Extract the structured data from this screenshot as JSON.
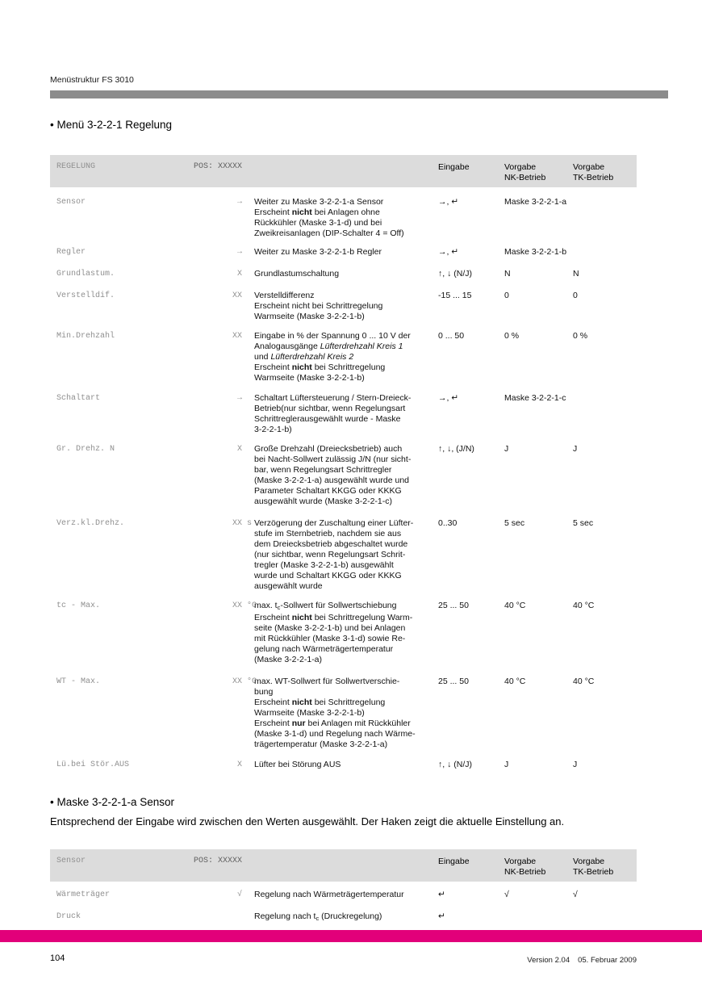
{
  "colors": {
    "accent": "#e2007a",
    "rule_gray": "#8c8c8c",
    "table_header_bg": "#dcdcdc"
  },
  "page": {
    "header_label": "Menüstruktur FS 3010",
    "footer": {
      "page_number": "104",
      "version": "Version 2.04",
      "date": "05. Februar 2009"
    }
  },
  "section1": {
    "heading": "• Menü 3-2-2-1 Regelung"
  },
  "section2": {
    "heading": "• Maske 3-2-2-1-a Sensor",
    "paragraph": "Entsprechend der Eingabe wird zwischen den Werten ausgewählt. Der Haken zeigt die aktuelle Einstellung an."
  },
  "table1": {
    "header": {
      "title": "REGELUNG",
      "pos": "POS: XXXXX",
      "eingabe": "Eingabe",
      "vorgabe": "Vorgabe",
      "nk": "NK-Betrieb",
      "tk": "TK-Betrieb"
    },
    "rows": [
      {
        "label": "Sensor",
        "code": "→",
        "code_suffix": "",
        "eingabe": "→, ↵",
        "nk": "Maske 3-2-2-1-a",
        "tk": "",
        "desc": [
          [
            [
              "",
              "Weiter zu Maske 3-2-2-1-a Sensor"
            ]
          ],
          [
            [
              "",
              "Erscheint "
            ],
            [
              "b",
              "nicht"
            ],
            [
              "",
              " bei Anlagen ohne"
            ]
          ],
          [
            [
              "",
              "Rückkühler (Maske 3-1-d) und bei"
            ]
          ],
          [
            [
              "",
              "Zweikreisanlagen (DIP-Schalter 4 = Off)"
            ]
          ]
        ]
      },
      {
        "label": "Regler",
        "code": "→",
        "code_suffix": "",
        "eingabe": "→, ↵",
        "nk": "Maske 3-2-2-1-b",
        "tk": "",
        "desc": [
          [
            [
              "",
              "Weiter zu Maske 3-2-2-1-b Regler"
            ]
          ]
        ]
      },
      {
        "label": "Grundlastum.",
        "code": "X",
        "code_suffix": "",
        "eingabe": "↑, ↓ (N/J)",
        "nk": "N",
        "tk": "N",
        "desc": [
          [
            [
              "",
              "Grundlastumschaltung"
            ]
          ]
        ]
      },
      {
        "label": "Verstelldif.",
        "code": "XX",
        "code_suffix": "",
        "eingabe": "-15 ... 15",
        "nk": "0",
        "tk": "0",
        "desc": [
          [
            [
              "",
              "Verstelldifferenz"
            ]
          ],
          [
            [
              "",
              "Erscheint nicht bei Schrittregelung"
            ]
          ],
          [
            [
              "",
              "Warmseite (Maske 3-2-2-1-b)"
            ]
          ]
        ]
      },
      {
        "label": "Min.Drehzahl",
        "code": "XX",
        "code_suffix": "",
        "eingabe": "0 ... 50",
        "nk": "0 %",
        "tk": "0 %",
        "desc": [
          [
            [
              "",
              "Eingabe in % der Spannung 0 ... 10 V der"
            ]
          ],
          [
            [
              "",
              "Analogausgänge "
            ],
            [
              "i",
              "Lüfterdrehzahl Kreis 1"
            ]
          ],
          [
            [
              "",
              "und "
            ],
            [
              "i",
              "Lüfterdrehzahl Kreis 2"
            ]
          ],
          [
            [
              "",
              "Erscheint "
            ],
            [
              "b",
              "nicht"
            ],
            [
              "",
              " bei Schrittregelung"
            ]
          ],
          [
            [
              "",
              "Warmseite (Maske 3-2-2-1-b)"
            ]
          ]
        ]
      },
      {
        "label": "Schaltart",
        "code": "→",
        "code_suffix": "",
        "eingabe": "→, ↵",
        "nk": "Maske 3-2-2-1-c",
        "tk": "",
        "desc": [
          [
            [
              "",
              "Schaltart Lüftersteuerung / Stern-Dreieck-"
            ]
          ],
          [
            [
              "",
              "Betrieb(nur sichtbar, wenn Regelungsart"
            ]
          ],
          [
            [
              "",
              "Schrittreglerausgewählt wurde - Maske"
            ]
          ],
          [
            [
              "",
              "3-2-2-1-b)"
            ]
          ]
        ]
      },
      {
        "label": "Gr. Drehz. N",
        "code": "X",
        "code_suffix": "",
        "eingabe": "↑, ↓, (J/N)",
        "nk": "J",
        "tk": "J",
        "desc": [
          [
            [
              "",
              "Große Drehzahl (Dreiecksbetrieb) auch"
            ]
          ],
          [
            [
              "",
              "bei Nacht-Sollwert zulässig J/N (nur sicht-"
            ]
          ],
          [
            [
              "",
              "bar, wenn Regelungsart Schrittregler"
            ]
          ],
          [
            [
              "",
              "(Maske 3-2-2-1-a) ausgewählt wurde und"
            ]
          ],
          [
            [
              "",
              "Parameter Schaltart KKGG oder KKKG"
            ]
          ],
          [
            [
              "",
              "ausgewählt wurde (Maske 3-2-2-1-c)"
            ]
          ]
        ]
      },
      {
        "label": "Verz.kl.Drehz.",
        "code": "XX",
        "code_suffix": "s",
        "eingabe": "0..30",
        "nk": "5 sec",
        "tk": "5 sec",
        "desc": [
          [
            [
              "",
              "Verzögerung der Zuschaltung einer Lüfter-"
            ]
          ],
          [
            [
              "",
              "stufe im Sternbetrieb, nachdem sie aus"
            ]
          ],
          [
            [
              "",
              "dem Dreiecksbetrieb abgeschaltet wurde"
            ]
          ],
          [
            [
              "",
              "(nur sichtbar, wenn Regelungsart Schrit-"
            ]
          ],
          [
            [
              "",
              "tregler (Maske 3-2-2-1-b) ausgewählt"
            ]
          ],
          [
            [
              "",
              "wurde und Schaltart KKGG oder KKKG"
            ]
          ],
          [
            [
              "",
              "ausgewählt wurde"
            ]
          ]
        ]
      },
      {
        "label": "tc - Max.",
        "code": "XX",
        "code_suffix": "°C",
        "eingabe": "25 ... 50",
        "nk": "40 °C",
        "tk": "40 °C",
        "desc": [
          [
            [
              "",
              "max. t"
            ],
            [
              "sub",
              "c"
            ],
            [
              "",
              "-Sollwert für Sollwertschiebung"
            ]
          ],
          [
            [
              "",
              "Erscheint "
            ],
            [
              "b",
              "nicht"
            ],
            [
              "",
              " bei Schrittregelung Warm-"
            ]
          ],
          [
            [
              "",
              "seite (Maske 3-2-2-1-b) und bei Anlagen"
            ]
          ],
          [
            [
              "",
              "mit Rückkühler (Maske 3-1-d) sowie Re-"
            ]
          ],
          [
            [
              "",
              "gelung nach Wärmeträgertemperatur"
            ]
          ],
          [
            [
              "",
              "(Maske 3-2-2-1-a)"
            ]
          ]
        ]
      },
      {
        "label": "WT - Max.",
        "code": "XX",
        "code_suffix": "°C",
        "eingabe": "25 ... 50",
        "nk": "40 °C",
        "tk": "40 °C",
        "desc": [
          [
            [
              "",
              "max. WT-Sollwert für Sollwertverschie-"
            ]
          ],
          [
            [
              "",
              "bung"
            ]
          ],
          [
            [
              "",
              "Erscheint "
            ],
            [
              "b",
              "nicht"
            ],
            [
              "",
              " bei Schrittregelung"
            ]
          ],
          [
            [
              "",
              "Warmseite (Maske 3-2-2-1-b)"
            ]
          ],
          [
            [
              "",
              "Erscheint "
            ],
            [
              "b",
              "nur"
            ],
            [
              "",
              " bei Anlagen mit Rückkühler"
            ]
          ],
          [
            [
              "",
              "(Maske 3-1-d) und Regelung nach Wärme-"
            ]
          ],
          [
            [
              "",
              "trägertemperatur (Maske 3-2-2-1-a)"
            ]
          ]
        ]
      },
      {
        "label": "Lü.bei Stör.AUS",
        "code": "X",
        "code_suffix": "",
        "eingabe": "↑, ↓ (N/J)",
        "nk": "J",
        "tk": "J",
        "desc": [
          [
            [
              "",
              "Lüfter bei Störung AUS"
            ]
          ]
        ]
      }
    ]
  },
  "table2": {
    "header": {
      "title": "Sensor",
      "pos": "POS: XXXXX",
      "eingabe": "Eingabe",
      "vorgabe": "Vorgabe",
      "nk": "NK-Betrieb",
      "tk": "TK-Betrieb"
    },
    "rows": [
      {
        "label": "Wärmeträger",
        "code": "√",
        "code_suffix": "",
        "eingabe": "↵",
        "nk": "√",
        "tk": "√",
        "desc": [
          [
            [
              "",
              "Regelung nach Wärmeträgertemperatur"
            ]
          ]
        ]
      },
      {
        "label": "Druck",
        "code": "",
        "code_suffix": "",
        "eingabe": "↵",
        "nk": "",
        "tk": "",
        "desc": [
          [
            [
              "",
              "Regelung nach t"
            ],
            [
              "sub",
              "c"
            ],
            [
              "",
              " (Druckregelung)"
            ]
          ]
        ]
      }
    ]
  }
}
